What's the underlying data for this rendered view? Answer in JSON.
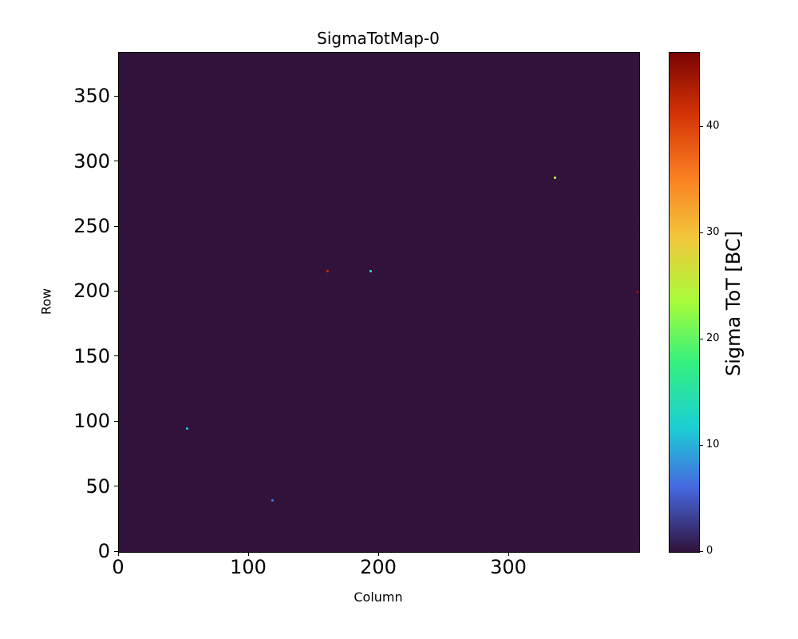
{
  "chart_data": {
    "type": "heatmap",
    "title": "SigmaTotMap-0",
    "xlabel": "Column",
    "ylabel": "Row",
    "xlim": [
      0,
      400
    ],
    "ylim": [
      0,
      384
    ],
    "xticks": [
      0,
      100,
      200,
      300
    ],
    "yticks": [
      0,
      50,
      100,
      150,
      200,
      250,
      300,
      350
    ],
    "grid": false,
    "legend": "none",
    "background_value": 0,
    "background_color": "#30123b",
    "noise": {
      "description": "faint speckle of near-zero pixels over dark background",
      "color_rgba": [
        90,
        60,
        130,
        0.3
      ],
      "count": 700
    },
    "colorbar": {
      "label": "Sigma ToT [BC]",
      "ticks": [
        0,
        10,
        20,
        30,
        40
      ],
      "vmin": 0,
      "vmax": 47,
      "colormap": "turbo",
      "stops": [
        {
          "pos": 0.0,
          "color": "#30123b"
        },
        {
          "pos": 0.13,
          "color": "#4669e1"
        },
        {
          "pos": 0.25,
          "color": "#1bcfd4"
        },
        {
          "pos": 0.38,
          "color": "#34f07e"
        },
        {
          "pos": 0.5,
          "color": "#a7fc3a"
        },
        {
          "pos": 0.63,
          "color": "#f3c63b"
        },
        {
          "pos": 0.75,
          "color": "#fb8022"
        },
        {
          "pos": 0.88,
          "color": "#d23105"
        },
        {
          "pos": 1.0,
          "color": "#7a0403"
        }
      ]
    },
    "outlier_points": [
      {
        "column": 52,
        "row": 95,
        "value": 11
      },
      {
        "column": 118,
        "row": 40,
        "value": 7
      },
      {
        "column": 160,
        "row": 216,
        "value": 42
      },
      {
        "column": 193,
        "row": 216,
        "value": 15
      },
      {
        "column": 335,
        "row": 288,
        "value": 24
      },
      {
        "column": 398,
        "row": 200,
        "value": 45
      }
    ]
  }
}
